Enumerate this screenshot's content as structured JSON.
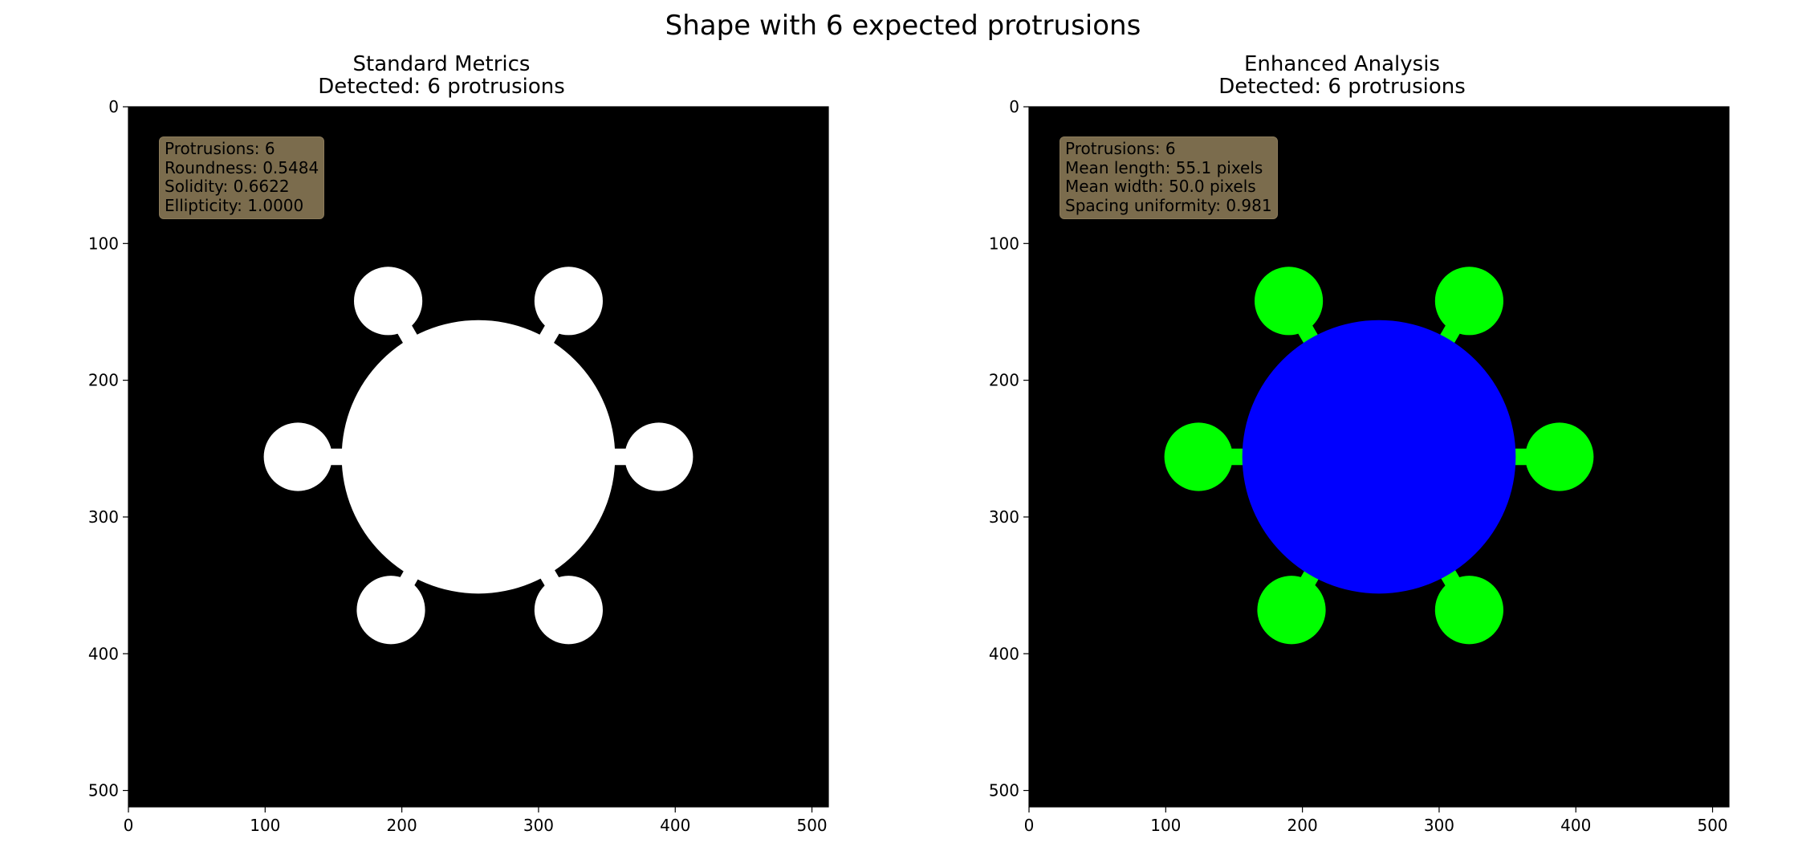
{
  "figure": {
    "title": "Shape with 6 expected protrusions"
  },
  "chart_data": [
    {
      "type": "image",
      "title": "Standard Metrics",
      "subtitle": "Detected: 6 protrusions",
      "xlim": [
        0,
        512
      ],
      "ylim": [
        512,
        0
      ],
      "xticks": [
        "0",
        "100",
        "200",
        "300",
        "400",
        "500"
      ],
      "yticks": [
        "0",
        "100",
        "200",
        "300",
        "400",
        "500"
      ],
      "background_color": "#000000",
      "shape_color": "#ffffff",
      "stalk_color": "#ffffff",
      "body": {
        "cx": 256,
        "cy": 256,
        "r": 100
      },
      "protrusions": [
        {
          "cx": 388,
          "cy": 256,
          "r": 25
        },
        {
          "cx": 322,
          "cy": 142,
          "r": 25
        },
        {
          "cx": 190,
          "cy": 142,
          "r": 25
        },
        {
          "cx": 124,
          "cy": 256,
          "r": 25
        },
        {
          "cx": 192,
          "cy": 368,
          "r": 25
        },
        {
          "cx": 322,
          "cy": 368,
          "r": 25
        }
      ],
      "annotation_lines": [
        "Protrusions: 6",
        "Roundness: 0.5484",
        "Solidity: 0.6622",
        "Ellipticity: 1.0000"
      ]
    },
    {
      "type": "image",
      "title": "Enhanced Analysis",
      "subtitle": "Detected: 6 protrusions",
      "xlim": [
        0,
        512
      ],
      "ylim": [
        512,
        0
      ],
      "xticks": [
        "0",
        "100",
        "200",
        "300",
        "400",
        "500"
      ],
      "yticks": [
        "0",
        "100",
        "200",
        "300",
        "400",
        "500"
      ],
      "background_color": "#000000",
      "shape_color": "#0000ff",
      "stalk_color": "#00ff00",
      "protrusion_color": "#00ff00",
      "body": {
        "cx": 256,
        "cy": 256,
        "r": 100
      },
      "protrusions": [
        {
          "cx": 388,
          "cy": 256,
          "r": 25
        },
        {
          "cx": 322,
          "cy": 142,
          "r": 25
        },
        {
          "cx": 190,
          "cy": 142,
          "r": 25
        },
        {
          "cx": 124,
          "cy": 256,
          "r": 25
        },
        {
          "cx": 192,
          "cy": 368,
          "r": 25
        },
        {
          "cx": 322,
          "cy": 368,
          "r": 25
        }
      ],
      "annotation_lines": [
        "Protrusions: 6",
        "Mean length: 55.1 pixels",
        "Mean width: 50.0 pixels",
        "Spacing uniformity: 0.981"
      ]
    }
  ]
}
